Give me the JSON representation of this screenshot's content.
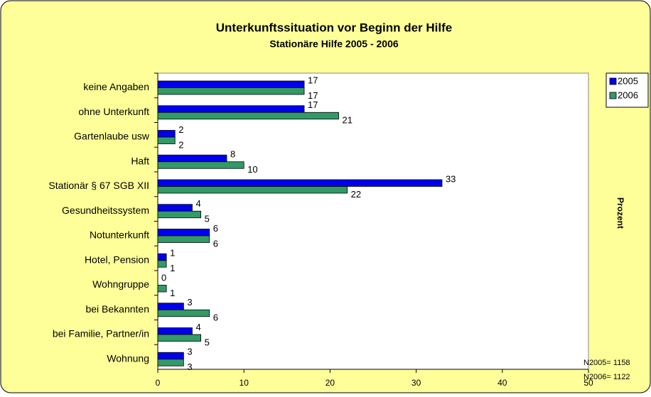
{
  "chart_data": {
    "type": "hbar",
    "title": "Unterkunftssituation vor Beginn der Hilfe",
    "subtitle": "Stationäre Hilfe 2005 - 2006",
    "categories": [
      "keine Angaben",
      "ohne Unterkunft",
      "Gartenlaube usw",
      "Haft",
      "Stationär § 67 SGB XII",
      "Gesundheitssystem",
      "Notunterkunft",
      "Hotel, Pension",
      "Wohngruppe",
      "bei Bekannten",
      "bei Familie, Partner/in",
      "Wohnung"
    ],
    "series": [
      {
        "name": "2005",
        "color": "#0000ee",
        "values": [
          17,
          17,
          2,
          8,
          33,
          4,
          6,
          1,
          0,
          3,
          4,
          3
        ]
      },
      {
        "name": "2006",
        "color": "#339966",
        "values": [
          17,
          21,
          2,
          10,
          22,
          5,
          6,
          1,
          1,
          6,
          5,
          3
        ]
      }
    ],
    "xlim": [
      0,
      50
    ],
    "xticks": [
      0,
      10,
      20,
      30,
      40,
      50
    ],
    "xlabel": "Prozent",
    "legend": "right",
    "annotations": [
      "N2005= 1158",
      "N2006= 1122"
    ]
  }
}
